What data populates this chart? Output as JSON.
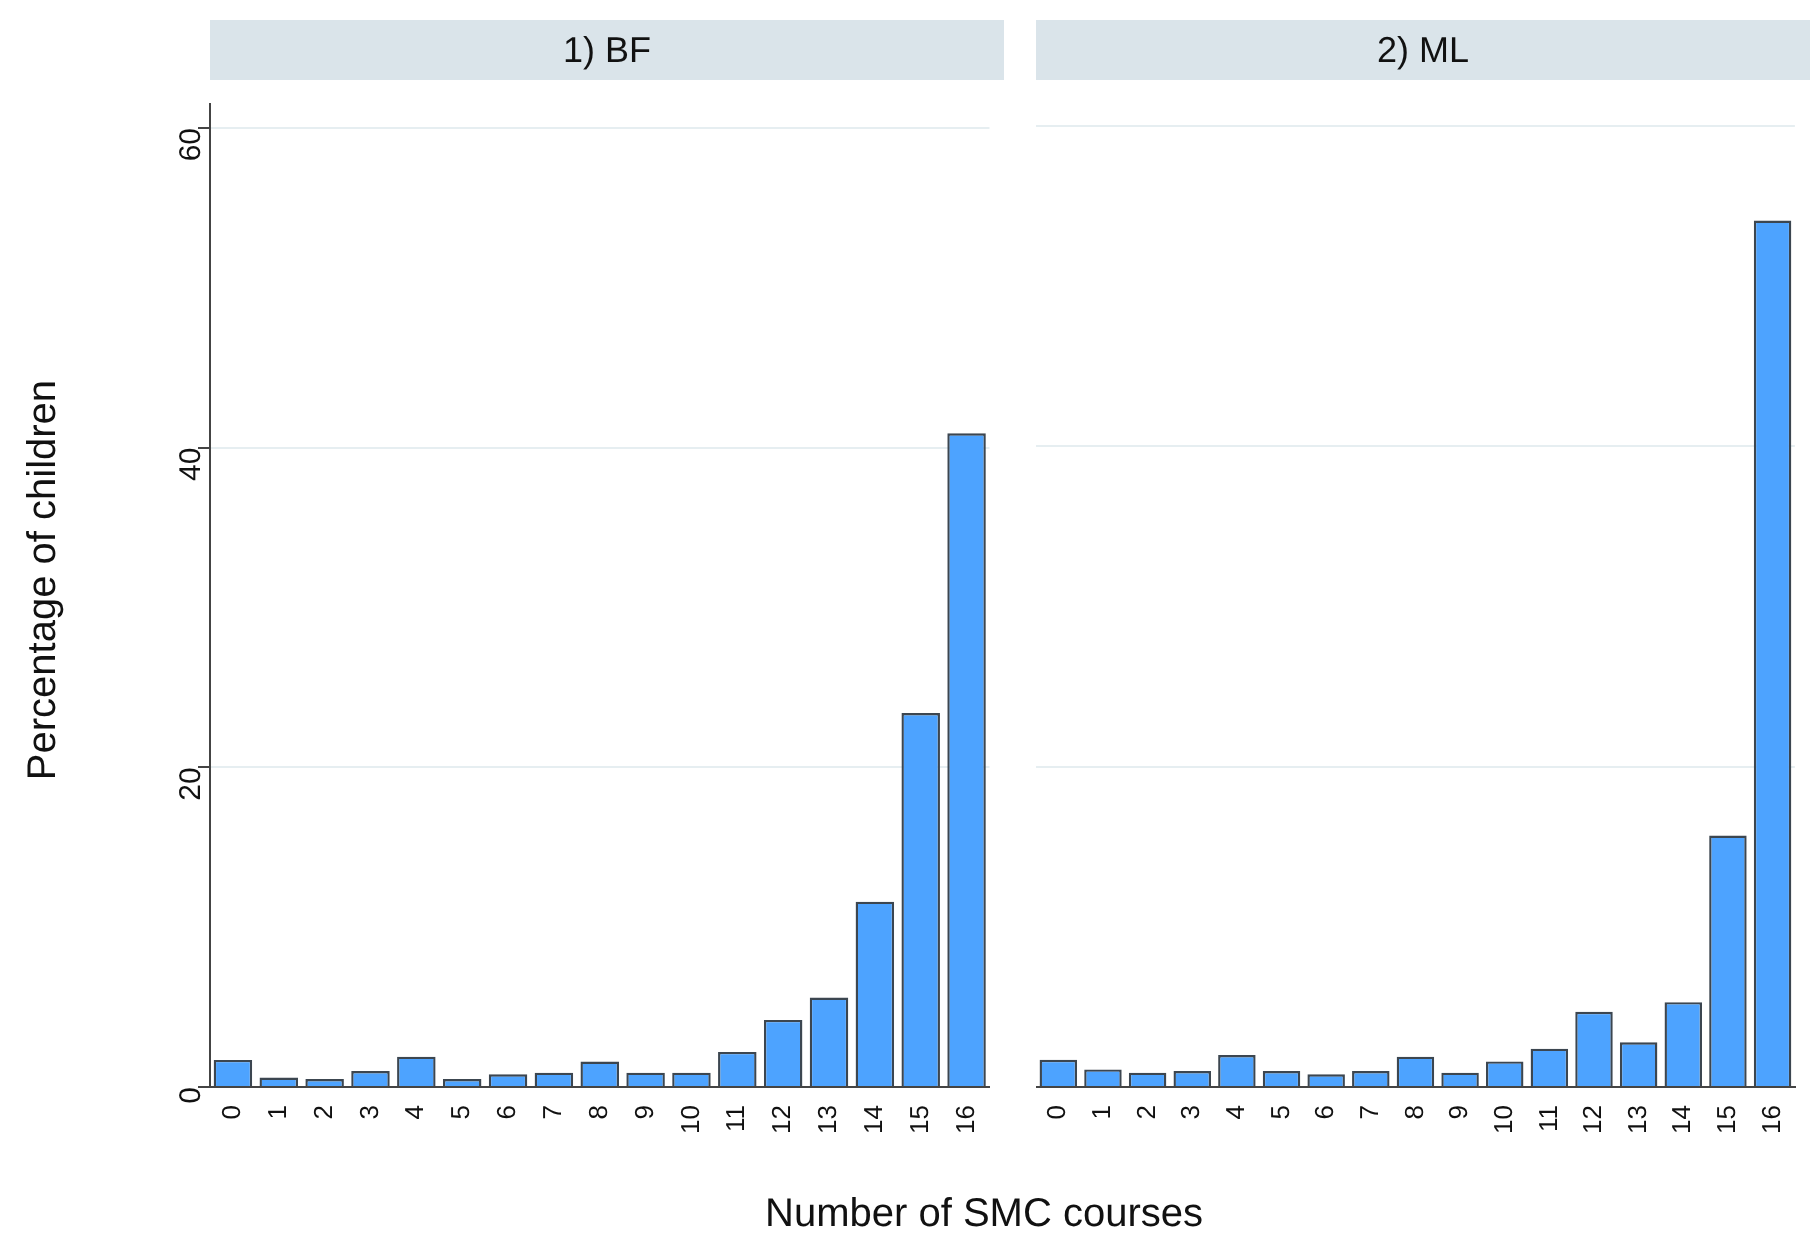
{
  "chart_data": [
    {
      "type": "bar",
      "title": "1) BF",
      "xlabel": "Number of SMC courses",
      "ylabel": "Percentage of children",
      "categories": [
        "0",
        "1",
        "2",
        "3",
        "4",
        "5",
        "6",
        "7",
        "8",
        "9",
        "10",
        "11",
        "12",
        "13",
        "14",
        "15",
        "16"
      ],
      "values": [
        1.7,
        0.6,
        0.5,
        1.0,
        1.9,
        0.5,
        0.8,
        0.9,
        1.6,
        0.9,
        0.9,
        2.2,
        4.2,
        5.6,
        11.6,
        23.4,
        40.9
      ],
      "color": "#4da3ff",
      "ylim": [
        0,
        61.5
      ],
      "yticks": [
        0,
        20,
        40,
        60
      ],
      "grid": "y"
    },
    {
      "type": "bar",
      "title": "2) ML",
      "categories": [
        "0",
        "1",
        "2",
        "3",
        "4",
        "5",
        "6",
        "7",
        "8",
        "9",
        "10",
        "11",
        "12",
        "13",
        "14",
        "15",
        "16"
      ],
      "values": [
        1.7,
        1.1,
        0.9,
        1.0,
        2.0,
        1.0,
        0.8,
        1.0,
        1.9,
        0.9,
        1.6,
        2.4,
        4.7,
        2.8,
        5.3,
        15.7,
        54.1
      ],
      "color": "#4da3ff",
      "ylim": [
        0,
        60
      ],
      "yticks": [
        0,
        20,
        40,
        60
      ],
      "grid": "y",
      "tick_labels": "x"
    }
  ]
}
